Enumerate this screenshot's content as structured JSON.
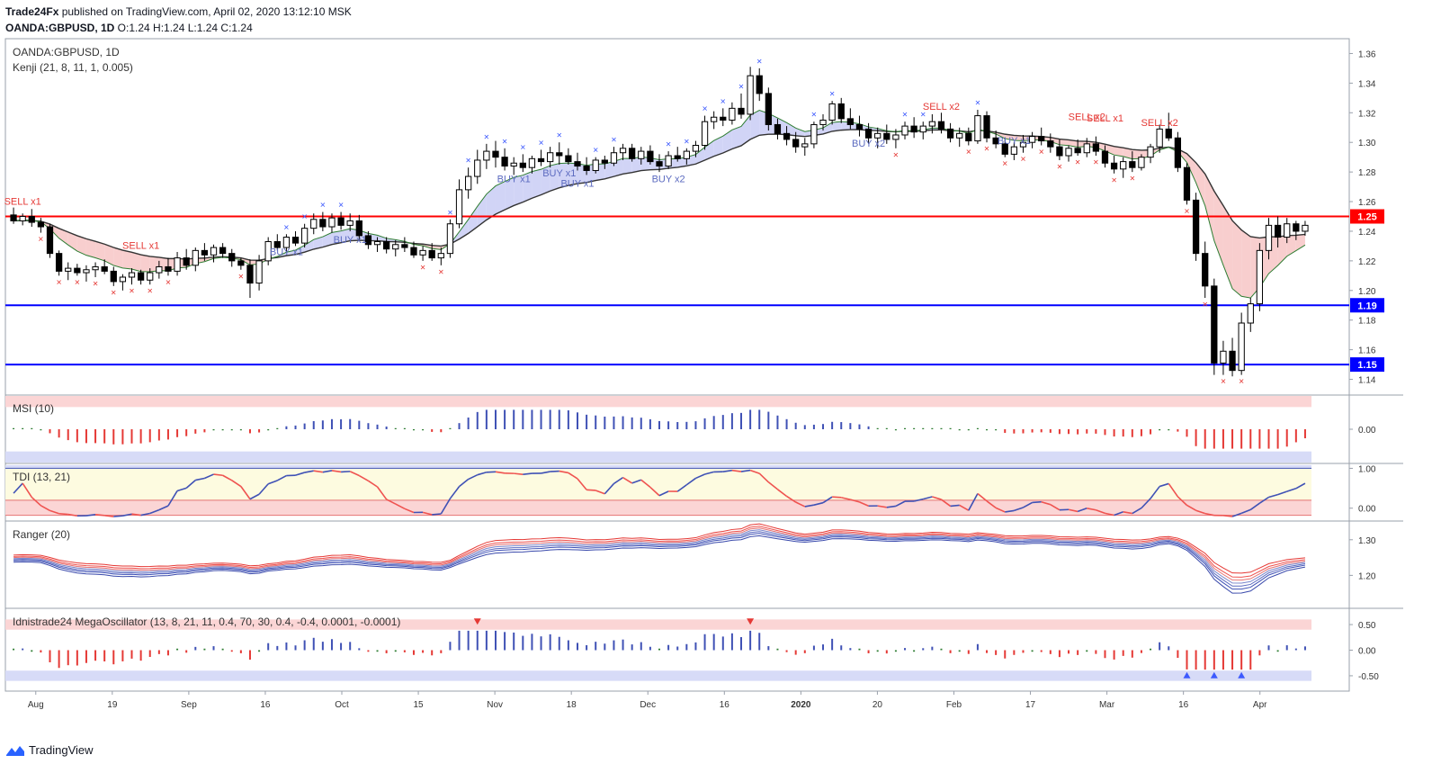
{
  "header": {
    "line1_author": "Trade24Fx",
    "line1_rest": " published on TradingView.com, April 02, 2020 13:12:10 MSK",
    "line2_symbol": "OANDA:GBPUSD, 1D",
    "line2_ohlc": " O:1.24 H:1.24 L:1.24 C:1.24"
  },
  "footer": {
    "brand": "TradingView"
  },
  "colors": {
    "bull": "#ffffff",
    "bear": "#000000",
    "red_line": "#ff0000",
    "blue_line": "#0000ff",
    "sell": "#e53935",
    "buy": "#3f51b5",
    "band_red": "#f7c6c6",
    "band_blue": "#c9cdf5",
    "band_green": "#cfeecf"
  },
  "chart_data": [
    {
      "type": "candlestick",
      "title": "OANDA:GBPUSD, 1D",
      "indicator_label": "Kenji (21, 8, 11, 1, 0.005)",
      "ylim": [
        1.13,
        1.37
      ],
      "y_ticks": [
        "1.36",
        "1.34",
        "1.32",
        "1.30",
        "1.28",
        "1.26",
        "1.24",
        "1.22",
        "1.20",
        "1.18",
        "1.16",
        "1.14"
      ],
      "x_ticks": [
        "Aug",
        "19",
        "Sep",
        "16",
        "Oct",
        "15",
        "Nov",
        "18",
        "Dec",
        "16",
        "2020",
        "20",
        "Feb",
        "17",
        "Mar",
        "16",
        "Apr"
      ],
      "horizontal_levels": [
        {
          "value": 1.25,
          "label": "1.25",
          "color": "#ff0000"
        },
        {
          "value": 1.19,
          "label": "1.19",
          "color": "#0000ff"
        },
        {
          "value": 1.15,
          "label": "1.15",
          "color": "#0000ff"
        }
      ],
      "annotations": [
        {
          "text": "SELL x1",
          "x": 1,
          "y": 1.258,
          "color": "#e53935"
        },
        {
          "text": "SELL x1",
          "x": 14,
          "y": 1.228,
          "color": "#e53935"
        },
        {
          "text": "BUY x1",
          "x": 30,
          "y": 1.224,
          "color": "#5c6bc0"
        },
        {
          "text": "BUY x1",
          "x": 37,
          "y": 1.232,
          "color": "#5c6bc0"
        },
        {
          "text": "BUY x1",
          "x": 55,
          "y": 1.273,
          "color": "#5c6bc0"
        },
        {
          "text": "BUY x1",
          "x": 60,
          "y": 1.277,
          "color": "#5c6bc0"
        },
        {
          "text": "BUY x1",
          "x": 62,
          "y": 1.27,
          "color": "#5c6bc0"
        },
        {
          "text": "BUY x2",
          "x": 72,
          "y": 1.273,
          "color": "#5c6bc0"
        },
        {
          "text": "BUY x2",
          "x": 94,
          "y": 1.297,
          "color": "#5c6bc0"
        },
        {
          "text": "SELL x2",
          "x": 102,
          "y": 1.322,
          "color": "#e53935"
        },
        {
          "text": "BUY x1",
          "x": 110,
          "y": 1.299,
          "color": "#5c6bc0"
        },
        {
          "text": "SELL x2",
          "x": 118,
          "y": 1.315,
          "color": "#e53935"
        },
        {
          "text": "SELL x1",
          "x": 120,
          "y": 1.314,
          "color": "#e53935"
        },
        {
          "text": "SELL x2",
          "x": 126,
          "y": 1.311,
          "color": "#e53935"
        }
      ],
      "candles": [
        [
          1.251,
          1.256,
          1.245,
          1.247
        ],
        [
          1.247,
          1.252,
          1.244,
          1.25
        ],
        [
          1.25,
          1.255,
          1.243,
          1.246
        ],
        [
          1.246,
          1.249,
          1.239,
          1.243
        ],
        [
          1.243,
          1.245,
          1.222,
          1.225
        ],
        [
          1.225,
          1.227,
          1.21,
          1.213
        ],
        [
          1.213,
          1.219,
          1.207,
          1.215
        ],
        [
          1.215,
          1.218,
          1.21,
          1.212
        ],
        [
          1.212,
          1.217,
          1.206,
          1.214
        ],
        [
          1.214,
          1.219,
          1.209,
          1.216
        ],
        [
          1.216,
          1.221,
          1.211,
          1.213
        ],
        [
          1.213,
          1.216,
          1.203,
          1.206
        ],
        [
          1.206,
          1.211,
          1.2,
          1.209
        ],
        [
          1.209,
          1.215,
          1.204,
          1.212
        ],
        [
          1.212,
          1.214,
          1.204,
          1.207
        ],
        [
          1.207,
          1.215,
          1.204,
          1.212
        ],
        [
          1.212,
          1.22,
          1.208,
          1.216
        ],
        [
          1.216,
          1.222,
          1.21,
          1.213
        ],
        [
          1.213,
          1.226,
          1.21,
          1.222
        ],
        [
          1.222,
          1.228,
          1.214,
          1.217
        ],
        [
          1.217,
          1.229,
          1.213,
          1.227
        ],
        [
          1.227,
          1.232,
          1.22,
          1.224
        ],
        [
          1.224,
          1.231,
          1.219,
          1.229
        ],
        [
          1.229,
          1.232,
          1.222,
          1.225
        ],
        [
          1.225,
          1.228,
          1.216,
          1.22
        ],
        [
          1.22,
          1.222,
          1.214,
          1.217
        ],
        [
          1.217,
          1.221,
          1.195,
          1.205
        ],
        [
          1.205,
          1.224,
          1.2,
          1.22
        ],
        [
          1.22,
          1.236,
          1.217,
          1.233
        ],
        [
          1.233,
          1.238,
          1.227,
          1.229
        ],
        [
          1.229,
          1.238,
          1.226,
          1.236
        ],
        [
          1.236,
          1.24,
          1.23,
          1.232
        ],
        [
          1.232,
          1.245,
          1.229,
          1.242
        ],
        [
          1.242,
          1.252,
          1.238,
          1.248
        ],
        [
          1.248,
          1.253,
          1.24,
          1.243
        ],
        [
          1.243,
          1.252,
          1.239,
          1.249
        ],
        [
          1.249,
          1.253,
          1.241,
          1.244
        ],
        [
          1.244,
          1.252,
          1.24,
          1.247
        ],
        [
          1.247,
          1.251,
          1.234,
          1.237
        ],
        [
          1.237,
          1.24,
          1.228,
          1.231
        ],
        [
          1.231,
          1.236,
          1.226,
          1.233
        ],
        [
          1.233,
          1.236,
          1.225,
          1.228
        ],
        [
          1.228,
          1.234,
          1.223,
          1.231
        ],
        [
          1.231,
          1.236,
          1.226,
          1.229
        ],
        [
          1.229,
          1.233,
          1.222,
          1.224
        ],
        [
          1.224,
          1.23,
          1.22,
          1.227
        ],
        [
          1.227,
          1.232,
          1.22,
          1.222
        ],
        [
          1.222,
          1.229,
          1.217,
          1.225
        ],
        [
          1.225,
          1.248,
          1.222,
          1.245
        ],
        [
          1.245,
          1.275,
          1.242,
          1.268
        ],
        [
          1.268,
          1.283,
          1.262,
          1.277
        ],
        [
          1.277,
          1.295,
          1.272,
          1.288
        ],
        [
          1.288,
          1.299,
          1.282,
          1.294
        ],
        [
          1.294,
          1.301,
          1.283,
          1.29
        ],
        [
          1.29,
          1.296,
          1.281,
          1.284
        ],
        [
          1.284,
          1.29,
          1.278,
          1.286
        ],
        [
          1.286,
          1.292,
          1.28,
          1.283
        ],
        [
          1.283,
          1.291,
          1.279,
          1.289
        ],
        [
          1.289,
          1.295,
          1.284,
          1.287
        ],
        [
          1.287,
          1.297,
          1.283,
          1.293
        ],
        [
          1.293,
          1.3,
          1.285,
          1.291
        ],
        [
          1.291,
          1.296,
          1.285,
          1.287
        ],
        [
          1.287,
          1.293,
          1.281,
          1.284
        ],
        [
          1.284,
          1.29,
          1.278,
          1.281
        ],
        [
          1.281,
          1.29,
          1.279,
          1.288
        ],
        [
          1.288,
          1.291,
          1.282,
          1.286
        ],
        [
          1.286,
          1.297,
          1.284,
          1.293
        ],
        [
          1.293,
          1.299,
          1.288,
          1.296
        ],
        [
          1.296,
          1.299,
          1.287,
          1.289
        ],
        [
          1.289,
          1.297,
          1.285,
          1.294
        ],
        [
          1.294,
          1.298,
          1.285,
          1.287
        ],
        [
          1.287,
          1.292,
          1.28,
          1.284
        ],
        [
          1.284,
          1.294,
          1.282,
          1.291
        ],
        [
          1.291,
          1.297,
          1.287,
          1.289
        ],
        [
          1.289,
          1.296,
          1.285,
          1.294
        ],
        [
          1.294,
          1.301,
          1.29,
          1.298
        ],
        [
          1.298,
          1.318,
          1.295,
          1.314
        ],
        [
          1.314,
          1.321,
          1.309,
          1.317
        ],
        [
          1.317,
          1.323,
          1.311,
          1.315
        ],
        [
          1.315,
          1.327,
          1.312,
          1.323
        ],
        [
          1.323,
          1.333,
          1.316,
          1.319
        ],
        [
          1.319,
          1.351,
          1.315,
          1.345
        ],
        [
          1.345,
          1.35,
          1.328,
          1.333
        ],
        [
          1.333,
          1.337,
          1.308,
          1.312
        ],
        [
          1.312,
          1.316,
          1.302,
          1.306
        ],
        [
          1.306,
          1.311,
          1.298,
          1.302
        ],
        [
          1.302,
          1.307,
          1.293,
          1.297
        ],
        [
          1.297,
          1.303,
          1.291,
          1.299
        ],
        [
          1.299,
          1.314,
          1.296,
          1.312
        ],
        [
          1.312,
          1.319,
          1.308,
          1.315
        ],
        [
          1.315,
          1.328,
          1.312,
          1.326
        ],
        [
          1.326,
          1.33,
          1.313,
          1.316
        ],
        [
          1.316,
          1.323,
          1.309,
          1.312
        ],
        [
          1.312,
          1.318,
          1.304,
          1.309
        ],
        [
          1.309,
          1.313,
          1.299,
          1.303
        ],
        [
          1.303,
          1.31,
          1.296,
          1.306
        ],
        [
          1.306,
          1.312,
          1.299,
          1.302
        ],
        [
          1.302,
          1.309,
          1.296,
          1.305
        ],
        [
          1.305,
          1.314,
          1.302,
          1.311
        ],
        [
          1.311,
          1.317,
          1.303,
          1.307
        ],
        [
          1.307,
          1.314,
          1.302,
          1.311
        ],
        [
          1.311,
          1.319,
          1.306,
          1.314
        ],
        [
          1.314,
          1.32,
          1.306,
          1.309
        ],
        [
          1.309,
          1.313,
          1.3,
          1.303
        ],
        [
          1.303,
          1.31,
          1.297,
          1.306
        ],
        [
          1.306,
          1.31,
          1.298,
          1.301
        ],
        [
          1.301,
          1.322,
          1.299,
          1.318
        ],
        [
          1.318,
          1.321,
          1.3,
          1.303
        ],
        [
          1.303,
          1.308,
          1.296,
          1.299
        ],
        [
          1.299,
          1.303,
          1.29,
          1.292
        ],
        [
          1.292,
          1.3,
          1.288,
          1.297
        ],
        [
          1.297,
          1.305,
          1.293,
          1.3
        ],
        [
          1.3,
          1.307,
          1.296,
          1.304
        ],
        [
          1.304,
          1.31,
          1.298,
          1.301
        ],
        [
          1.301,
          1.306,
          1.293,
          1.297
        ],
        [
          1.297,
          1.302,
          1.288,
          1.291
        ],
        [
          1.291,
          1.298,
          1.287,
          1.296
        ],
        [
          1.296,
          1.302,
          1.291,
          1.293
        ],
        [
          1.293,
          1.303,
          1.29,
          1.299
        ],
        [
          1.299,
          1.304,
          1.291,
          1.294
        ],
        [
          1.294,
          1.298,
          1.283,
          1.286
        ],
        [
          1.286,
          1.291,
          1.279,
          1.282
        ],
        [
          1.282,
          1.29,
          1.276,
          1.287
        ],
        [
          1.287,
          1.294,
          1.28,
          1.283
        ],
        [
          1.283,
          1.292,
          1.281,
          1.29
        ],
        [
          1.29,
          1.299,
          1.286,
          1.297
        ],
        [
          1.297,
          1.312,
          1.293,
          1.309
        ],
        [
          1.309,
          1.32,
          1.301,
          1.303
        ],
        [
          1.303,
          1.307,
          1.28,
          1.283
        ],
        [
          1.283,
          1.286,
          1.258,
          1.261
        ],
        [
          1.261,
          1.266,
          1.22,
          1.225
        ],
        [
          1.225,
          1.233,
          1.195,
          1.203
        ],
        [
          1.203,
          1.208,
          1.143,
          1.151
        ],
        [
          1.151,
          1.166,
          1.143,
          1.159
        ],
        [
          1.159,
          1.168,
          1.142,
          1.146
        ],
        [
          1.146,
          1.185,
          1.143,
          1.178
        ],
        [
          1.178,
          1.195,
          1.172,
          1.191
        ],
        [
          1.191,
          1.232,
          1.186,
          1.227
        ],
        [
          1.227,
          1.249,
          1.221,
          1.244
        ],
        [
          1.244,
          1.25,
          1.229,
          1.236
        ],
        [
          1.236,
          1.249,
          1.232,
          1.245
        ],
        [
          1.245,
          1.247,
          1.234,
          1.24
        ],
        [
          1.24,
          1.247,
          1.237,
          1.244
        ]
      ]
    },
    {
      "type": "bar",
      "title": "MSI (10)",
      "ylim": [
        -0.24,
        0.24
      ],
      "y_ticks": [
        "0.00"
      ]
    },
    {
      "type": "line",
      "title": "TDI (13, 21)",
      "ylim": [
        -0.3,
        1.1
      ],
      "y_ticks": [
        "1.00",
        "0.00"
      ]
    },
    {
      "type": "line",
      "title": "Ranger (20)",
      "ylim": [
        1.11,
        1.35
      ],
      "y_ticks": [
        "1.30",
        "1.20"
      ]
    },
    {
      "type": "bar",
      "title": "Idnistrade24 MegaOscillator (13, 8, 21, 11, 0.4, 70, 30, 0.4, -0.4, 0.0001, -0.0001)",
      "ylim": [
        -0.8,
        0.8
      ],
      "y_ticks": [
        "0.50",
        "0.00",
        "-0.50"
      ]
    }
  ]
}
